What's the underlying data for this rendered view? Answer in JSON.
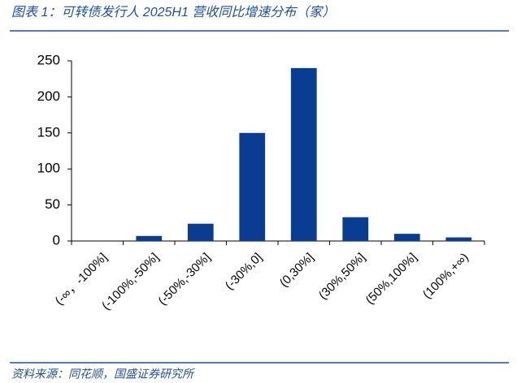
{
  "chart_data": {
    "type": "bar",
    "title": "图表 1：可转债发行人 2025H1 营收同比增速分布（家）",
    "source": "资料来源：同花顺，国盛证券研究所",
    "categories": [
      "(-∞，-100%]",
      "(-100%,-50%]",
      "(-50%,-30%]",
      "(-30%,0]",
      "(0,30%]",
      "(30%,50%]",
      "(50%,100%]",
      "(100%,+∞)"
    ],
    "values": [
      0,
      7,
      24,
      150,
      240,
      33,
      10,
      5
    ],
    "color": "#0a3d91",
    "ylim": [
      0,
      250
    ],
    "yticks": [
      0,
      50,
      100,
      150,
      200,
      250
    ],
    "grid": false
  }
}
